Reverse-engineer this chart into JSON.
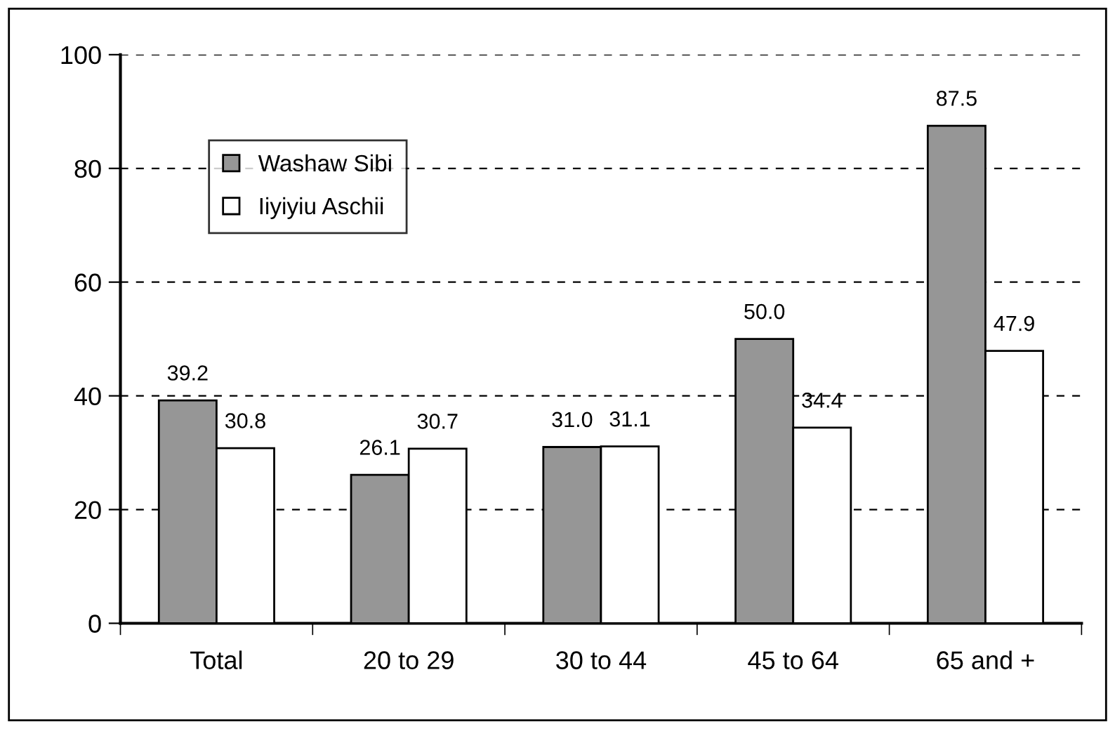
{
  "chart_data": {
    "type": "bar",
    "categories": [
      "Total",
      "20 to 29",
      "30 to 44",
      "45 to 64",
      "65 and +"
    ],
    "series": [
      {
        "name": "Washaw Sibi",
        "color": "#969696",
        "values": [
          39.2,
          26.1,
          31.0,
          50.0,
          87.5
        ],
        "value_labels": [
          "39.2",
          "26.1",
          "31.0",
          "50.0",
          "87.5"
        ]
      },
      {
        "name": "Iiyiyiu Aschii",
        "color": "#ffffff",
        "values": [
          30.8,
          30.7,
          31.1,
          34.4,
          47.9
        ],
        "value_labels": [
          "30.8",
          "30.7",
          "31.1",
          "34.4",
          "47.9"
        ]
      }
    ],
    "ylim": [
      0,
      100
    ],
    "yticks": [
      0,
      20,
      40,
      60,
      80,
      100
    ],
    "grid": "y",
    "legend": "top left"
  }
}
